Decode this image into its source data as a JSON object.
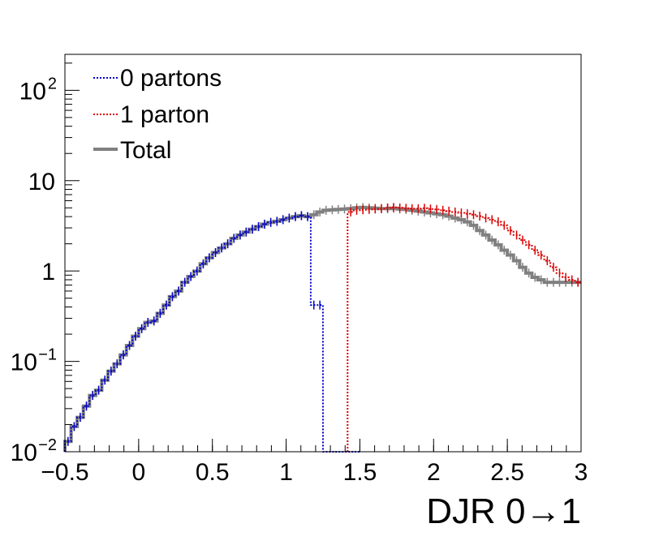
{
  "chart_data": {
    "type": "line",
    "xlabel": "DJR 0→1",
    "ylabel": "",
    "title": "",
    "xlim": [
      -0.5,
      3.0
    ],
    "ylim": [
      0.01,
      250
    ],
    "yscale": "log",
    "grid": false,
    "legend_position": "top-left",
    "x_ticks": [
      {
        "v": -0.5,
        "label": "−0.5"
      },
      {
        "v": 0,
        "label": "0"
      },
      {
        "v": 0.5,
        "label": "0.5"
      },
      {
        "v": 1,
        "label": "1"
      },
      {
        "v": 1.5,
        "label": "1.5"
      },
      {
        "v": 2,
        "label": "2"
      },
      {
        "v": 2.5,
        "label": "2.5"
      },
      {
        "v": 3,
        "label": "3"
      }
    ],
    "y_ticks": [
      {
        "v": 0.01,
        "base": "10",
        "exp": "−2"
      },
      {
        "v": 0.1,
        "base": "10",
        "exp": "−1"
      },
      {
        "v": 1,
        "base": "1",
        "exp": ""
      },
      {
        "v": 10,
        "base": "10",
        "exp": ""
      },
      {
        "v": 100,
        "base": "10",
        "exp": "2"
      }
    ],
    "bin_width": 0.0417,
    "series": [
      {
        "name": "0 partons",
        "style": "dotted",
        "color": "#0000cc",
        "x": [
          -0.5,
          -0.458,
          -0.417,
          -0.375,
          -0.333,
          -0.292,
          -0.25,
          -0.208,
          -0.167,
          -0.125,
          -0.083,
          -0.042,
          0.0,
          0.042,
          0.083,
          0.125,
          0.167,
          0.208,
          0.25,
          0.292,
          0.333,
          0.375,
          0.417,
          0.458,
          0.5,
          0.542,
          0.583,
          0.625,
          0.667,
          0.708,
          0.75,
          0.792,
          0.833,
          0.875,
          0.917,
          0.958,
          1.0,
          1.042,
          1.083,
          1.125,
          1.167,
          1.208,
          1.25,
          1.292,
          1.333,
          1.375,
          1.417,
          1.458
        ],
        "y": [
          0.013,
          0.019,
          0.024,
          0.032,
          0.042,
          0.048,
          0.062,
          0.078,
          0.094,
          0.118,
          0.15,
          0.19,
          0.23,
          0.27,
          0.28,
          0.34,
          0.42,
          0.52,
          0.6,
          0.75,
          0.87,
          1.0,
          1.2,
          1.4,
          1.6,
          1.8,
          2.0,
          2.3,
          2.5,
          2.7,
          2.9,
          3.1,
          3.3,
          3.45,
          3.55,
          3.7,
          3.85,
          4.0,
          4.1,
          4.0,
          0.42,
          0.42,
          0.01,
          0.01,
          0.01,
          0.01,
          0.01,
          0.01
        ]
      },
      {
        "name": "1 parton",
        "style": "dotted",
        "color": "#dd0000",
        "x": [
          1.417,
          1.458,
          1.5,
          1.542,
          1.583,
          1.625,
          1.667,
          1.708,
          1.75,
          1.792,
          1.833,
          1.875,
          1.917,
          1.958,
          2.0,
          2.042,
          2.083,
          2.125,
          2.167,
          2.208,
          2.25,
          2.292,
          2.333,
          2.375,
          2.417,
          2.458,
          2.5,
          2.542,
          2.583,
          2.625,
          2.667,
          2.708,
          2.75,
          2.792,
          2.833,
          2.875,
          2.917,
          2.958
        ],
        "y": [
          4.5,
          4.7,
          4.75,
          4.8,
          4.85,
          4.9,
          5.0,
          5.05,
          5.0,
          4.95,
          4.9,
          4.9,
          4.95,
          4.85,
          4.8,
          4.7,
          4.6,
          4.5,
          4.4,
          4.3,
          4.2,
          4.05,
          3.85,
          3.7,
          3.5,
          3.2,
          2.8,
          2.5,
          2.2,
          1.95,
          1.7,
          1.5,
          1.3,
          1.1,
          0.95,
          0.85,
          0.8,
          0.75
        ]
      },
      {
        "name": "Total",
        "style": "solid",
        "color": "#808080",
        "x": [
          -0.5,
          -0.458,
          -0.417,
          -0.375,
          -0.333,
          -0.292,
          -0.25,
          -0.208,
          -0.167,
          -0.125,
          -0.083,
          -0.042,
          0.0,
          0.042,
          0.083,
          0.125,
          0.167,
          0.208,
          0.25,
          0.292,
          0.333,
          0.375,
          0.417,
          0.458,
          0.5,
          0.542,
          0.583,
          0.625,
          0.667,
          0.708,
          0.75,
          0.792,
          0.833,
          0.875,
          0.917,
          0.958,
          1.0,
          1.042,
          1.083,
          1.125,
          1.167,
          1.208,
          1.25,
          1.292,
          1.333,
          1.375,
          1.417,
          1.458,
          1.5,
          1.542,
          1.583,
          1.625,
          1.667,
          1.708,
          1.75,
          1.792,
          1.833,
          1.875,
          1.917,
          1.958,
          2.0,
          2.042,
          2.083,
          2.125,
          2.167,
          2.208,
          2.25,
          2.292,
          2.333,
          2.375,
          2.417,
          2.458,
          2.5,
          2.542,
          2.583,
          2.625,
          2.667,
          2.708,
          2.75,
          2.792,
          2.833,
          2.875,
          2.917,
          2.958
        ],
        "y": [
          0.013,
          0.019,
          0.024,
          0.032,
          0.042,
          0.048,
          0.062,
          0.078,
          0.094,
          0.118,
          0.15,
          0.19,
          0.23,
          0.27,
          0.28,
          0.34,
          0.42,
          0.52,
          0.6,
          0.75,
          0.87,
          1.0,
          1.2,
          1.4,
          1.6,
          1.8,
          2.0,
          2.3,
          2.5,
          2.7,
          2.9,
          3.1,
          3.3,
          3.45,
          3.55,
          3.7,
          3.85,
          4.0,
          4.1,
          4.0,
          4.2,
          4.5,
          4.7,
          4.75,
          4.8,
          4.85,
          4.9,
          5.0,
          5.05,
          5.0,
          4.95,
          4.9,
          4.9,
          4.95,
          4.85,
          4.8,
          4.7,
          4.6,
          4.5,
          4.4,
          4.3,
          4.2,
          4.05,
          3.85,
          3.7,
          3.5,
          3.2,
          2.8,
          2.5,
          2.2,
          1.95,
          1.7,
          1.5,
          1.3,
          1.1,
          0.95,
          0.85,
          0.8,
          0.75,
          0.75,
          0.75,
          0.75,
          0.75,
          0.75
        ]
      }
    ]
  }
}
